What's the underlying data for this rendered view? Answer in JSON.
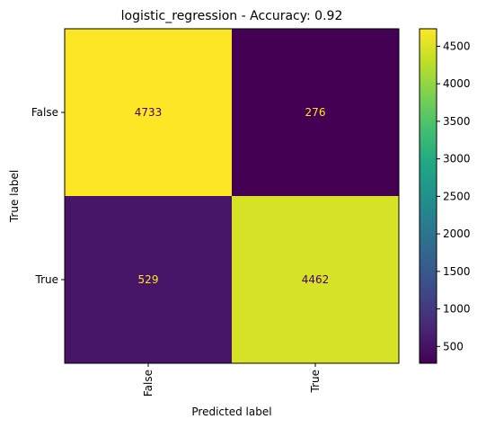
{
  "chart_data": {
    "type": "heatmap",
    "title": "logistic_regression - Accuracy: 0.92",
    "xlabel": "Predicted label",
    "ylabel": "True label",
    "x_categories": [
      "False",
      "True"
    ],
    "y_categories": [
      "False",
      "True"
    ],
    "values": [
      [
        4733,
        276
      ],
      [
        529,
        4462
      ]
    ],
    "colormap": "viridis",
    "colorbar": {
      "ticks": [
        500,
        1000,
        1500,
        2000,
        2500,
        3000,
        3500,
        4000,
        4500
      ],
      "tick_labels": [
        "500",
        "1000",
        "1500",
        "2000",
        "2500",
        "3000",
        "3500",
        "4000",
        "4500"
      ]
    },
    "cell_label_colors": {
      "on_dark": "#fde725",
      "on_light": "#440154"
    }
  }
}
